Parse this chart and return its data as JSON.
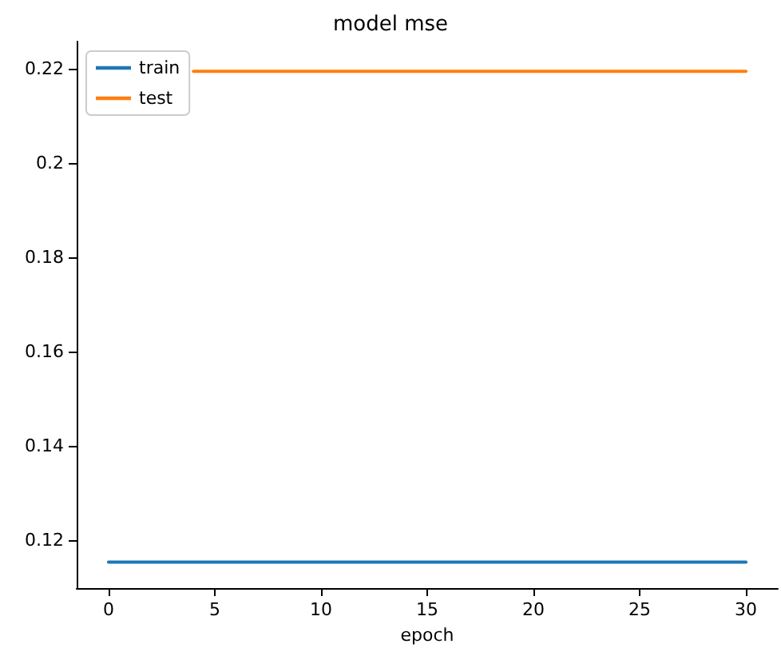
{
  "chart_data": {
    "type": "line",
    "title": "model mse",
    "xlabel": "epoch",
    "x": [
      0,
      1,
      2,
      3,
      4,
      5,
      6,
      7,
      8,
      9,
      10,
      11,
      12,
      13,
      14,
      15,
      16,
      17,
      18,
      19,
      20,
      21,
      22,
      23,
      24,
      25,
      26,
      27,
      28,
      29,
      30
    ],
    "series": [
      {
        "name": "train",
        "color": "#1f77b4",
        "values": [
          0.1153,
          0.1153,
          0.1153,
          0.1153,
          0.1153,
          0.1153,
          0.1153,
          0.1153,
          0.1153,
          0.1153,
          0.1153,
          0.1153,
          0.1153,
          0.1153,
          0.1153,
          0.1153,
          0.1153,
          0.1153,
          0.1153,
          0.1153,
          0.1153,
          0.1153,
          0.1153,
          0.1153,
          0.1153,
          0.1153,
          0.1153,
          0.1153,
          0.1153,
          0.1153,
          0.1153
        ]
      },
      {
        "name": "test",
        "color": "#ff7f0e",
        "values": [
          null,
          null,
          null,
          null,
          0.2195,
          0.2195,
          0.2195,
          0.2195,
          0.2195,
          0.2195,
          0.2195,
          0.2195,
          0.2195,
          0.2195,
          0.2195,
          0.2195,
          0.2195,
          0.2195,
          0.2195,
          0.2195,
          0.2195,
          0.2195,
          0.2195,
          0.2195,
          0.2195,
          0.2195,
          0.2195,
          0.2195,
          0.2195,
          0.2195,
          0.2195
        ]
      }
    ],
    "xlim": [
      -1.5,
      31.5
    ],
    "xticks": [
      0,
      5,
      10,
      15,
      20,
      25,
      30
    ],
    "ylim": [
      0.1098,
      0.2258
    ],
    "yticks": [
      0.12,
      0.14,
      0.16,
      0.18,
      0.2,
      0.22
    ],
    "grid": false,
    "legend": "top left",
    "marker": "none",
    "line_style": "solid"
  }
}
